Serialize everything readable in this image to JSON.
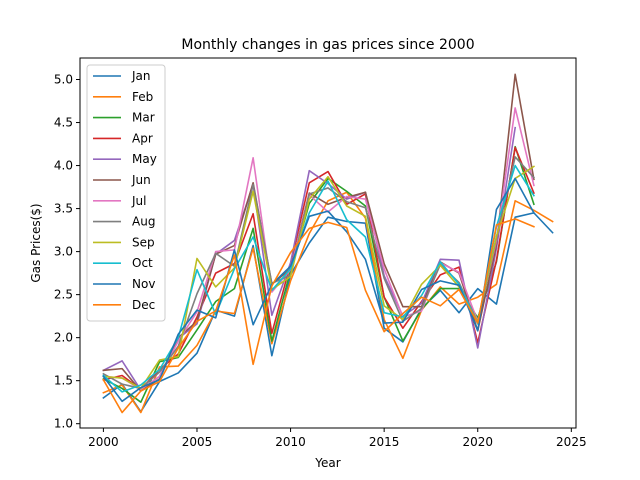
{
  "chart_data": {
    "type": "line",
    "title": "Monthly changes in gas prices since 2000",
    "xlabel": "Year",
    "ylabel": "Gas Prices($)",
    "xlim": [
      1998.75,
      2025.25
    ],
    "ylim": [
      0.95,
      5.25
    ],
    "xticks": [
      2000,
      2005,
      2010,
      2015,
      2020,
      2025
    ],
    "xtick_labels": [
      "2000",
      "2005",
      "2010",
      "2015",
      "2020",
      "2025"
    ],
    "yticks": [
      1.0,
      1.5,
      2.0,
      2.5,
      3.0,
      3.5,
      4.0,
      4.5,
      5.0
    ],
    "ytick_labels": [
      "1.0",
      "1.5",
      "2.0",
      "2.5",
      "3.0",
      "3.5",
      "4.0",
      "4.5",
      "5.0"
    ],
    "grid": false,
    "legend_position": "top-left",
    "x": [
      2000,
      2001,
      2002,
      2003,
      2004,
      2005,
      2006,
      2007,
      2008,
      2009,
      2010,
      2011,
      2012,
      2013,
      2014,
      2015,
      2016,
      2017,
      2018,
      2019,
      2020,
      2021,
      2022,
      2023,
      2024
    ],
    "series": [
      {
        "name": "Jan",
        "color": "#1f77b4",
        "values": [
          1.3,
          1.46,
          1.14,
          1.49,
          1.59,
          1.82,
          2.32,
          2.25,
          3.07,
          1.79,
          2.73,
          3.1,
          3.4,
          3.35,
          3.33,
          2.11,
          1.95,
          2.34,
          2.55,
          2.29,
          2.57,
          2.39,
          3.4,
          3.45,
          3.22
        ]
      },
      {
        "name": "Feb",
        "color": "#ff7f0e",
        "values": [
          1.36,
          1.45,
          1.13,
          1.66,
          1.67,
          1.91,
          2.31,
          2.28,
          3.04,
          1.93,
          2.66,
          3.21,
          3.59,
          3.69,
          3.39,
          2.21,
          1.76,
          2.32,
          2.59,
          2.39,
          2.47,
          2.62,
          3.59,
          3.48,
          3.35
        ]
      },
      {
        "name": "Mar",
        "color": "#2ca02c",
        "values": [
          1.52,
          1.41,
          1.25,
          1.72,
          1.77,
          2.09,
          2.42,
          2.57,
          3.27,
          1.96,
          2.78,
          3.56,
          3.85,
          3.7,
          3.53,
          2.47,
          1.96,
          2.33,
          2.57,
          2.57,
          2.23,
          2.88,
          4.22,
          3.55,
          null
        ]
      },
      {
        "name": "Apr",
        "color": "#d62728",
        "values": [
          1.51,
          1.56,
          1.4,
          1.63,
          1.81,
          2.24,
          2.75,
          2.86,
          3.44,
          2.05,
          2.86,
          3.8,
          3.93,
          3.55,
          3.67,
          2.47,
          2.11,
          2.42,
          2.73,
          2.82,
          1.94,
          2.9,
          4.21,
          3.68,
          null
        ]
      },
      {
        "name": "May",
        "color": "#9467bd",
        "values": [
          1.62,
          1.73,
          1.39,
          1.55,
          1.99,
          2.16,
          2.97,
          3.13,
          3.78,
          2.26,
          2.87,
          3.94,
          3.79,
          3.61,
          3.69,
          2.72,
          2.25,
          2.4,
          2.91,
          2.9,
          1.88,
          3.04,
          4.44,
          null,
          null
        ]
      },
      {
        "name": "Jun",
        "color": "#8c564b",
        "values": [
          1.62,
          1.64,
          1.38,
          1.52,
          2.0,
          2.19,
          2.97,
          3.07,
          3.8,
          2.62,
          2.8,
          3.68,
          3.55,
          3.63,
          3.69,
          2.86,
          2.36,
          2.36,
          2.88,
          2.75,
          2.08,
          3.08,
          5.06,
          3.84,
          null
        ]
      },
      {
        "name": "Jul",
        "color": "#e377c2",
        "values": [
          1.55,
          1.53,
          1.4,
          1.55,
          1.96,
          2.3,
          3.0,
          3.02,
          4.09,
          2.53,
          2.79,
          3.66,
          3.46,
          3.64,
          3.61,
          2.8,
          2.24,
          2.31,
          2.87,
          2.76,
          2.19,
          3.13,
          4.67,
          3.77,
          null
        ]
      },
      {
        "name": "Aug",
        "color": "#7f7f7f",
        "values": [
          1.58,
          1.46,
          1.41,
          1.6,
          1.9,
          2.51,
          2.98,
          2.83,
          3.78,
          2.63,
          2.73,
          3.67,
          3.74,
          3.58,
          3.51,
          2.69,
          2.19,
          2.34,
          2.85,
          2.64,
          2.18,
          3.16,
          4.1,
          3.86,
          null
        ]
      },
      {
        "name": "Sep",
        "color": "#bcbd22",
        "values": [
          1.55,
          1.53,
          1.41,
          1.74,
          1.78,
          2.92,
          2.59,
          2.81,
          3.7,
          2.56,
          2.71,
          3.61,
          3.87,
          3.53,
          3.41,
          2.37,
          2.21,
          2.62,
          2.84,
          2.59,
          2.18,
          3.18,
          3.85,
          3.99,
          null
        ]
      },
      {
        "name": "Oct",
        "color": "#17becf",
        "values": [
          1.56,
          1.37,
          1.45,
          1.63,
          2.0,
          2.79,
          2.27,
          2.8,
          3.17,
          2.55,
          2.8,
          3.45,
          3.82,
          3.37,
          3.17,
          2.29,
          2.24,
          2.49,
          2.88,
          2.62,
          2.16,
          3.29,
          4.0,
          3.65,
          null
        ]
      },
      {
        "name": "Nov",
        "color": "#1f77b4",
        "values": [
          1.55,
          1.26,
          1.42,
          1.51,
          2.04,
          2.32,
          2.23,
          3.02,
          2.15,
          2.62,
          2.83,
          3.41,
          3.47,
          3.23,
          2.91,
          2.17,
          2.18,
          2.56,
          2.66,
          2.61,
          2.08,
          3.49,
          3.85,
          3.45,
          null
        ]
      },
      {
        "name": "Dec",
        "color": "#ff7f0e",
        "values": [
          1.51,
          1.13,
          1.38,
          1.49,
          1.88,
          2.19,
          2.31,
          2.96,
          1.69,
          2.6,
          2.99,
          3.27,
          3.34,
          3.28,
          2.55,
          2.07,
          2.28,
          2.47,
          2.37,
          2.56,
          2.17,
          3.31,
          3.38,
          3.29,
          null
        ]
      }
    ]
  }
}
